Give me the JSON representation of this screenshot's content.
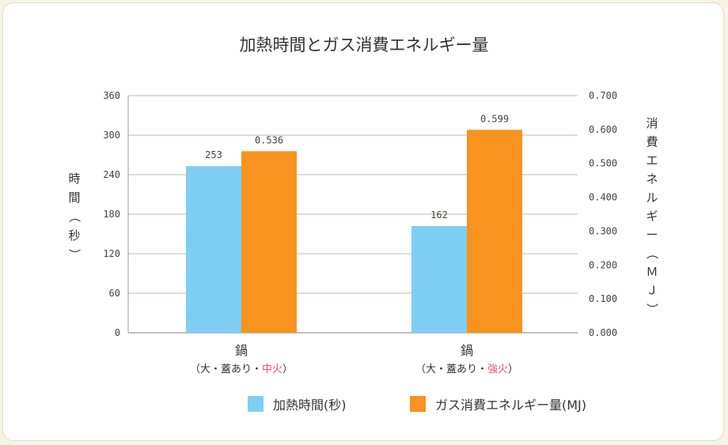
{
  "chart_data": {
    "type": "bar",
    "title": "加熱時間とガス消費エネルギー量",
    "ylabel_left": "時間（秒）",
    "ylabel_right": "消費エネルギー（ＭＪ）",
    "categories": [
      {
        "main": "鍋",
        "sub_prefix": "（大・蓋あり・",
        "sub_highlight": "中火",
        "sub_suffix": "）"
      },
      {
        "main": "鍋",
        "sub_prefix": "（大・蓋あり・",
        "sub_highlight": "強火",
        "sub_suffix": "）"
      }
    ],
    "series": [
      {
        "name": "加熱時間(秒)",
        "axis": "left",
        "color": "#7ecef4",
        "values": [
          253,
          162
        ],
        "labels": [
          "253",
          "162"
        ]
      },
      {
        "name": "ガス消費エネルギー量(MJ)",
        "axis": "right",
        "color": "#f7931e",
        "values": [
          0.536,
          0.599
        ],
        "labels": [
          "0.536",
          "0.599"
        ]
      }
    ],
    "left_axis": {
      "min": 0,
      "max": 360,
      "ticks": [
        "0",
        "60",
        "120",
        "180",
        "240",
        "300",
        "360"
      ]
    },
    "right_axis": {
      "min": 0,
      "max": 0.7,
      "ticks": [
        "0.000",
        "0.100",
        "0.200",
        "0.300",
        "0.400",
        "0.500",
        "0.600",
        "0.700"
      ]
    },
    "grid": true,
    "legend": "bottom-right",
    "colors": {
      "grid": "#cfc6b8",
      "axis": "#999999",
      "highlight": "#e8566a"
    }
  }
}
